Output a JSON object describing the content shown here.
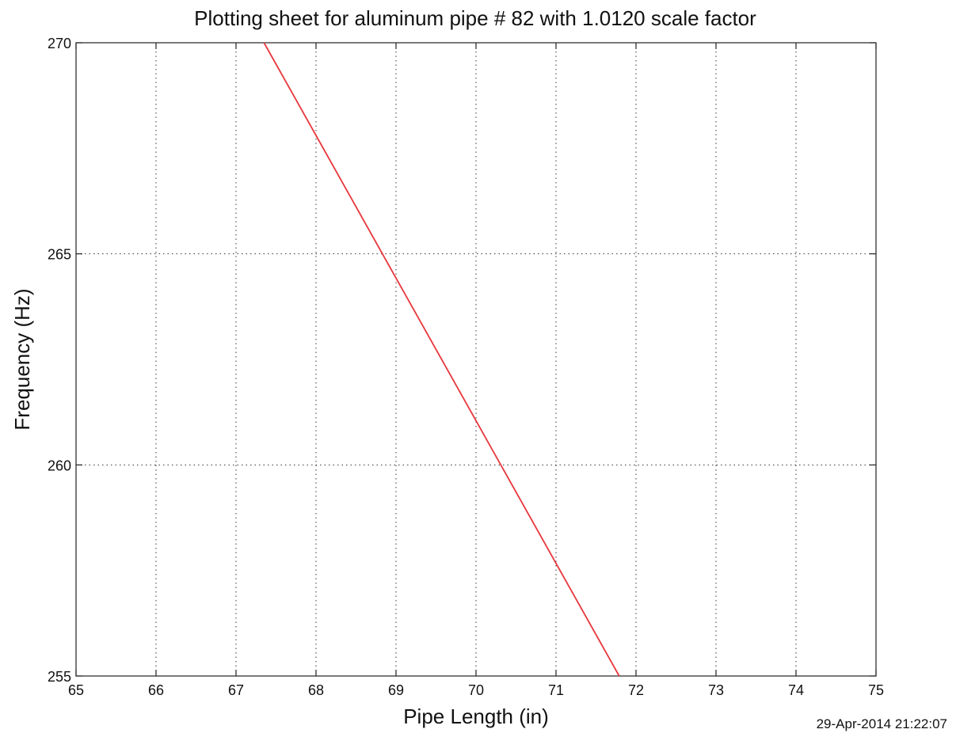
{
  "chart_data": {
    "type": "line",
    "title": "Plotting sheet for aluminum pipe # 82 with 1.0120 scale factor",
    "xlabel": "Pipe Length (in)",
    "ylabel": "Frequency (Hz)",
    "xlim": [
      65,
      75
    ],
    "ylim": [
      255,
      270
    ],
    "xticks": [
      "65",
      "66",
      "67",
      "68",
      "69",
      "70",
      "71",
      "72",
      "73",
      "74",
      "75"
    ],
    "yticks": [
      "255",
      "260",
      "265",
      "270"
    ],
    "grid": true,
    "series": [
      {
        "color": "#e8363c",
        "x": [
          67.35,
          71.79
        ],
        "y": [
          270,
          255
        ]
      }
    ],
    "timestamp": "29-Apr-2014 21:22:07"
  }
}
